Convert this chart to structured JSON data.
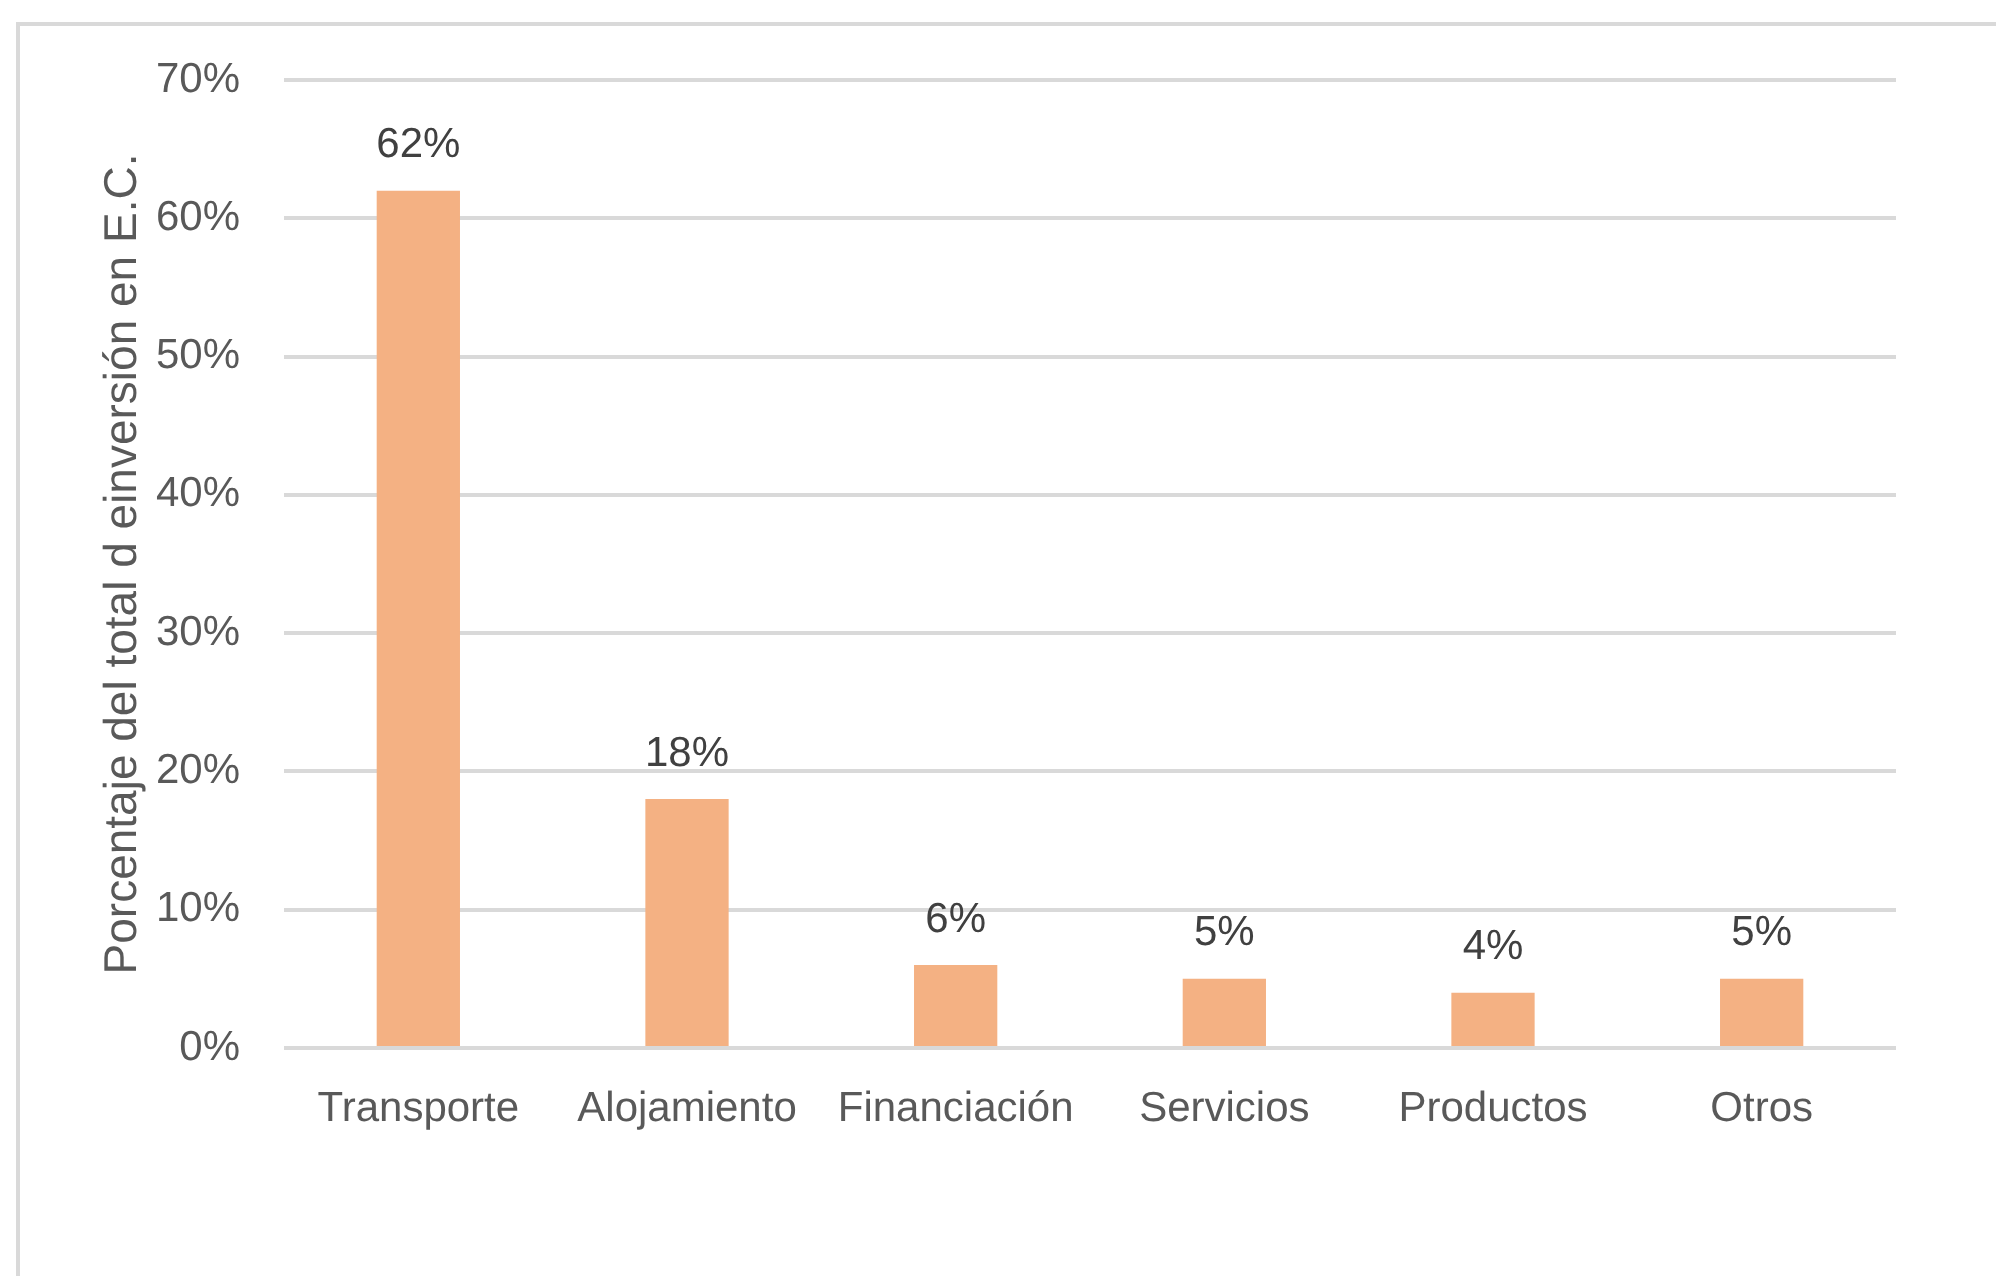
{
  "chart_data": {
    "type": "bar",
    "ylabel": "Porcentaje del total d einversión en E.C.",
    "categories": [
      "Transporte",
      "Alojamiento",
      "Financiación",
      "Servicios",
      "Productos",
      "Otros"
    ],
    "values": [
      62,
      18,
      6,
      5,
      4,
      5
    ],
    "color": "#f4b183",
    "value_labels": [
      "62%",
      "18%",
      "6%",
      "5%",
      "4%",
      "5%"
    ],
    "ylim": [
      0,
      70
    ],
    "yticks": [
      {
        "value": 0,
        "label": "0%"
      },
      {
        "value": 10,
        "label": "10%"
      },
      {
        "value": 20,
        "label": "20%"
      },
      {
        "value": 30,
        "label": "30%"
      },
      {
        "value": 40,
        "label": "40%"
      },
      {
        "value": 50,
        "label": "50%"
      },
      {
        "value": 60,
        "label": "60%"
      },
      {
        "value": 70,
        "label": "70%"
      }
    ],
    "grid": "y"
  }
}
